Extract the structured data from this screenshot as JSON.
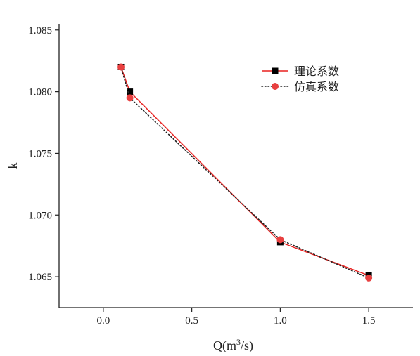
{
  "chart_data": {
    "type": "line",
    "x": [
      0.1,
      0.15,
      1.0,
      1.5
    ],
    "series": [
      {
        "name": "理论系数",
        "values": [
          1.082,
          1.08,
          1.0678,
          1.0651
        ],
        "color": "#e8201f",
        "marker_color": "#000000",
        "marker": "square",
        "line": "solid"
      },
      {
        "name": "仿真系数",
        "values": [
          1.082,
          1.0795,
          1.068,
          1.0649
        ],
        "color": "#222222",
        "marker_color": "#e84040",
        "marker": "circle",
        "line": "dotted"
      }
    ],
    "xlabel_base": "Q(m",
    "xlabel_sup": "3",
    "xlabel_tail": "/s)",
    "ylabel": "k",
    "xlim": [
      -0.25,
      1.75
    ],
    "ylim": [
      1.0625,
      1.0855
    ],
    "xticks": [
      "0.0",
      "0.5",
      "1.0",
      "1.5"
    ],
    "xtick_values": [
      0.0,
      0.5,
      1.0,
      1.5
    ],
    "yticks": [
      "1.065",
      "1.070",
      "1.075",
      "1.080",
      "1.085"
    ],
    "ytick_values": [
      1.065,
      1.07,
      1.075,
      1.08,
      1.085
    ],
    "grid": false,
    "legend_position": "top-right"
  }
}
